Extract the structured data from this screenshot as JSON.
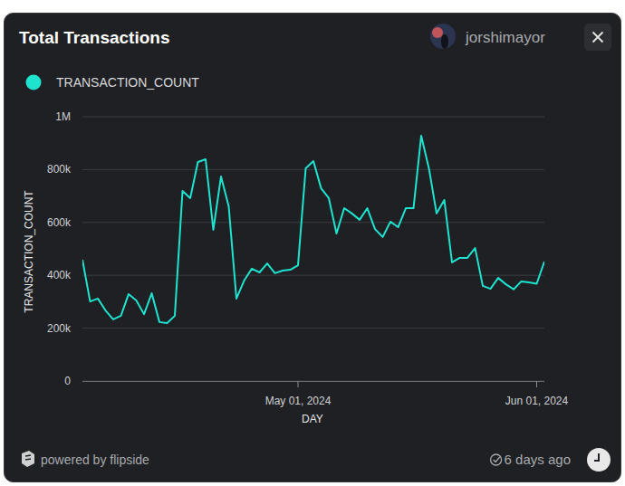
{
  "chart_data": {
    "type": "line",
    "title": "Total Transactions",
    "x_label": "DAY",
    "y_label": "TRANSACTION_COUNT",
    "x": [
      "2024-04-03",
      "2024-04-04",
      "2024-04-05",
      "2024-04-06",
      "2024-04-07",
      "2024-04-08",
      "2024-04-09",
      "2024-04-10",
      "2024-04-11",
      "2024-04-12",
      "2024-04-13",
      "2024-04-14",
      "2024-04-15",
      "2024-04-16",
      "2024-04-17",
      "2024-04-18",
      "2024-04-19",
      "2024-04-20",
      "2024-04-21",
      "2024-04-22",
      "2024-04-23",
      "2024-04-24",
      "2024-04-25",
      "2024-04-26",
      "2024-04-27",
      "2024-04-28",
      "2024-04-29",
      "2024-04-30",
      "2024-05-01",
      "2024-05-02",
      "2024-05-03",
      "2024-05-04",
      "2024-05-05",
      "2024-05-06",
      "2024-05-07",
      "2024-05-08",
      "2024-05-09",
      "2024-05-10",
      "2024-05-11",
      "2024-05-12",
      "2024-05-13",
      "2024-05-14",
      "2024-05-15",
      "2024-05-16",
      "2024-05-17",
      "2024-05-18",
      "2024-05-19",
      "2024-05-20",
      "2024-05-21",
      "2024-05-22",
      "2024-05-23",
      "2024-05-24",
      "2024-05-25",
      "2024-05-26",
      "2024-05-27",
      "2024-05-28",
      "2024-05-29",
      "2024-05-30",
      "2024-05-31",
      "2024-06-01",
      "2024-06-02"
    ],
    "series": [
      {
        "name": "TRANSACTION_COUNT",
        "color": "#1ee3cf",
        "values": [
          459000,
          301000,
          312000,
          267000,
          233000,
          247000,
          329000,
          305000,
          253000,
          332000,
          223000,
          219000,
          247000,
          719000,
          692000,
          829000,
          839000,
          572000,
          774000,
          661000,
          312000,
          380000,
          425000,
          411000,
          445000,
          408000,
          418000,
          421000,
          438000,
          805000,
          832000,
          729000,
          692000,
          558000,
          654000,
          634000,
          610000,
          654000,
          575000,
          545000,
          603000,
          582000,
          654000,
          654000,
          928000,
          805000,
          634000,
          685000,
          449000,
          466000,
          466000,
          503000,
          360000,
          349000,
          390000,
          366000,
          347000,
          377000,
          373000,
          368000,
          452000
        ]
      }
    ],
    "xlim": [
      "2024-04-03",
      "2024-06-02"
    ],
    "xticks": [
      {
        "value": "2024-05-01",
        "label": "May 01, 2024"
      },
      {
        "value": "2024-06-01",
        "label": "Jun 01, 2024"
      }
    ],
    "ylim": [
      0,
      1000000
    ],
    "yticks": [
      0,
      {
        "value": 200000,
        "label": "200k"
      },
      {
        "value": 400000,
        "label": "400k"
      },
      {
        "value": 600000,
        "label": "600k"
      },
      {
        "value": 800000,
        "label": "800k"
      },
      {
        "value": 1000000,
        "label": "1M"
      }
    ],
    "grid": true,
    "legend": "top-left"
  },
  "header": {
    "user": "jorshimayor"
  },
  "footer": {
    "credit": "powered by flipside",
    "updated": "6 days ago"
  }
}
